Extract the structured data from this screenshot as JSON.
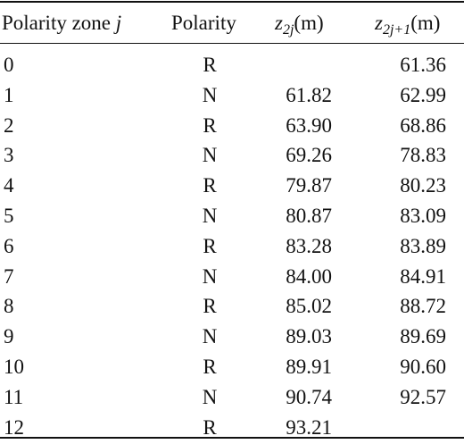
{
  "table": {
    "headers": {
      "zone": "Polarity zone",
      "zone_var": "j",
      "polarity": "Polarity",
      "z2j_base": "z",
      "z2j_sub": "2j",
      "z2j_unit": "(m)",
      "z2j1_base": "z",
      "z2j1_sub": "2j+1",
      "z2j1_unit": "(m)"
    },
    "rows": [
      {
        "zone": "0",
        "polarity": "R",
        "z2j": "",
        "z2j1": "61.36"
      },
      {
        "zone": "1",
        "polarity": "N",
        "z2j": "61.82",
        "z2j1": "62.99"
      },
      {
        "zone": "2",
        "polarity": "R",
        "z2j": "63.90",
        "z2j1": "68.86"
      },
      {
        "zone": "3",
        "polarity": "N",
        "z2j": "69.26",
        "z2j1": "78.83"
      },
      {
        "zone": "4",
        "polarity": "R",
        "z2j": "79.87",
        "z2j1": "80.23"
      },
      {
        "zone": "5",
        "polarity": "N",
        "z2j": "80.87",
        "z2j1": "83.09"
      },
      {
        "zone": "6",
        "polarity": "R",
        "z2j": "83.28",
        "z2j1": "83.89"
      },
      {
        "zone": "7",
        "polarity": "N",
        "z2j": "84.00",
        "z2j1": "84.91"
      },
      {
        "zone": "8",
        "polarity": "R",
        "z2j": "85.02",
        "z2j1": "88.72"
      },
      {
        "zone": "9",
        "polarity": "N",
        "z2j": "89.03",
        "z2j1": "89.69"
      },
      {
        "zone": "10",
        "polarity": "R",
        "z2j": "89.91",
        "z2j1": "90.60"
      },
      {
        "zone": "11",
        "polarity": "N",
        "z2j": "90.74",
        "z2j1": "92.57"
      },
      {
        "zone": "12",
        "polarity": "R",
        "z2j": "93.21",
        "z2j1": ""
      }
    ]
  }
}
